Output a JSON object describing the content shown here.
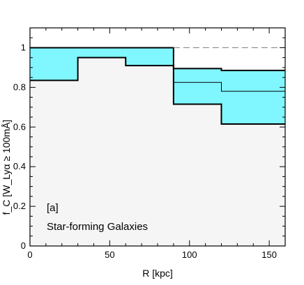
{
  "chart_data": {
    "type": "step-band",
    "xlabel": "R [kpc]",
    "ylabel": "f_C [W_Lyα ≥ 100mÅ]",
    "xlim": [
      0,
      160
    ],
    "ylim": [
      0,
      1.1
    ],
    "x_ticks": [
      0,
      50,
      100,
      150
    ],
    "y_ticks": [
      0,
      0.2,
      0.4,
      0.6,
      0.8,
      1
    ],
    "x_tick_labels": [
      "0",
      "50",
      "100",
      "150"
    ],
    "y_tick_labels": [
      "0",
      "0.2",
      "0.4",
      "0.6",
      "0.8",
      "1"
    ],
    "bins": [
      {
        "x0": 0,
        "x1": 30,
        "lower": 0.835,
        "upper": 1.0,
        "median": null
      },
      {
        "x0": 30,
        "x1": 60,
        "lower": 0.95,
        "upper": 1.0,
        "median": null
      },
      {
        "x0": 60,
        "x1": 90,
        "lower": 0.91,
        "upper": 1.0,
        "median": null
      },
      {
        "x0": 90,
        "x1": 120,
        "lower": 0.715,
        "upper": 0.895,
        "median": 0.825
      },
      {
        "x0": 120,
        "x1": 160,
        "lower": 0.615,
        "upper": 0.885,
        "median": 0.78
      }
    ],
    "reference_line": {
      "y": 1.0,
      "x_from": 90,
      "x_to": 160,
      "style": "dashed"
    },
    "annotations": [
      "[a]",
      "Star-forming Galaxies"
    ],
    "colors": {
      "band": "#80f6ff",
      "below": "#f5f5f5",
      "line": "#000000",
      "reference": "#888888"
    },
    "grid": false
  }
}
